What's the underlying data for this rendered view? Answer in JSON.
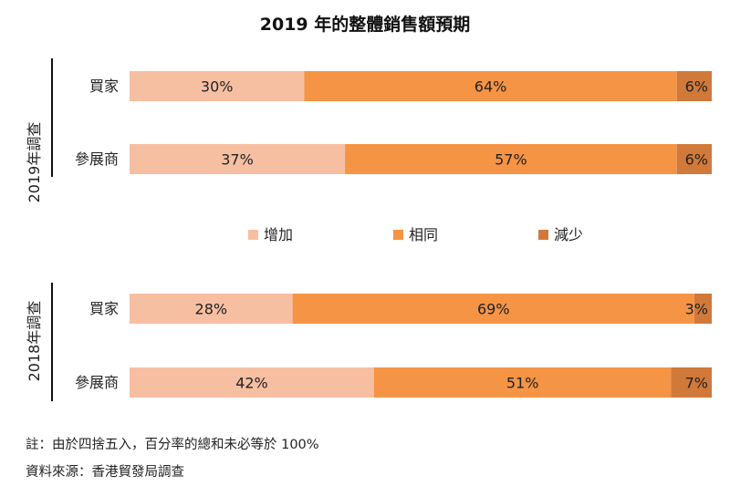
{
  "title": "2019 年的整體銷售額預期",
  "chart_data": {
    "type": "bar",
    "stacked": true,
    "orientation": "horizontal",
    "series_names": [
      "增加",
      "相同",
      "減少"
    ],
    "colors": [
      "#f7bfa2",
      "#f59445",
      "#d1793a"
    ],
    "groups": [
      {
        "label": "2019年調查",
        "categories": [
          "買家",
          "參展商"
        ],
        "series": [
          {
            "name": "增加",
            "values": [
              30,
              37
            ]
          },
          {
            "name": "相同",
            "values": [
              64,
              57
            ]
          },
          {
            "name": "減少",
            "values": [
              6,
              6
            ]
          }
        ]
      },
      {
        "label": "2018年調查",
        "categories": [
          "買家",
          "參展商"
        ],
        "series": [
          {
            "name": "增加",
            "values": [
              28,
              42
            ]
          },
          {
            "name": "相同",
            "values": [
              69,
              51
            ]
          },
          {
            "name": "減少",
            "values": [
              3,
              7
            ]
          }
        ]
      }
    ],
    "value_suffix": "%",
    "xlim": [
      0,
      100
    ],
    "legend_position": "center",
    "grid": false
  },
  "notes": {
    "note1": "註：由於四捨五入，百分率的總和未必等於 100%",
    "source": "資料來源：香港貿發局調查"
  }
}
